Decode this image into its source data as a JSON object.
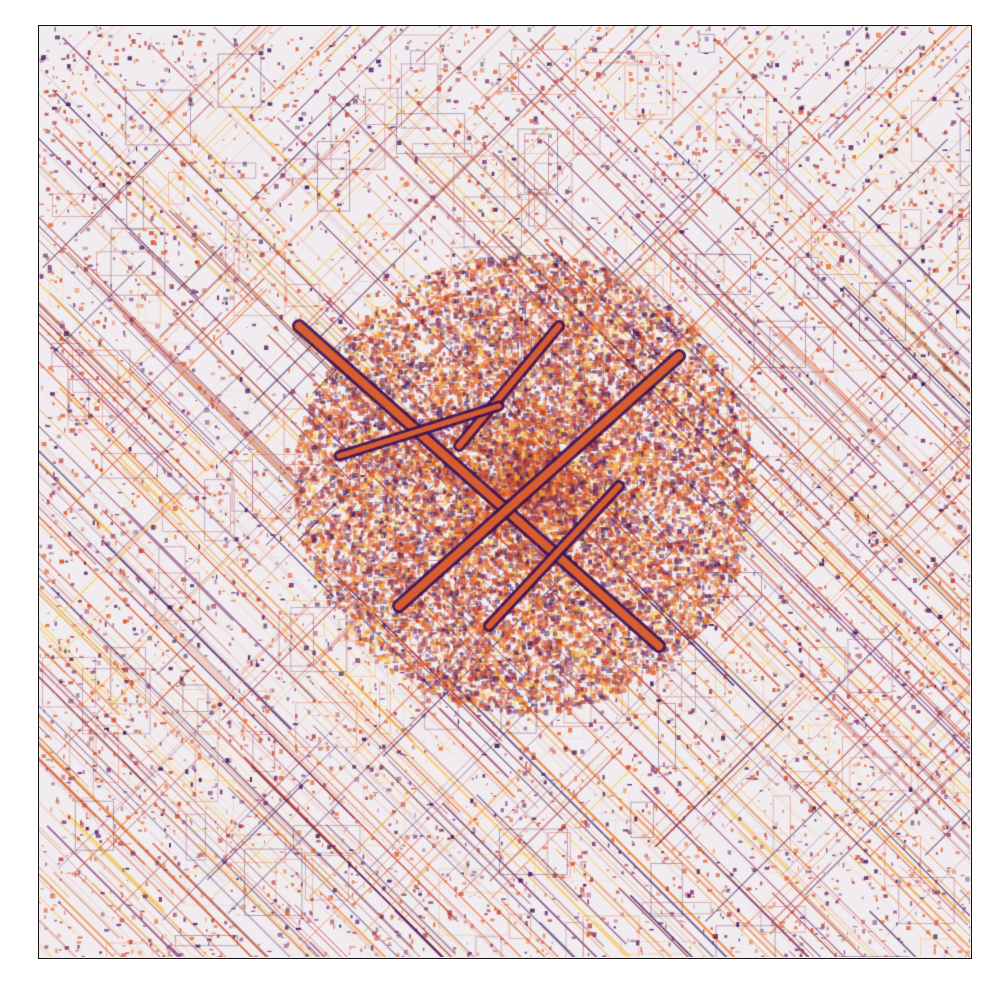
{
  "figure": {
    "kind": "abstract cellular-automaton style pattern image",
    "colormap": "inferno",
    "palette": [
      "#f0eaf0",
      "#e8c9cc",
      "#f2a23a",
      "#fcc63a",
      "#e8652a",
      "#d44a1f",
      "#b33a3a",
      "#7a2b6b",
      "#3a1156"
    ],
    "background_color": "#f1ecef",
    "frame_color": "#111111",
    "axes_visible": false,
    "ticks_visible": false
  }
}
